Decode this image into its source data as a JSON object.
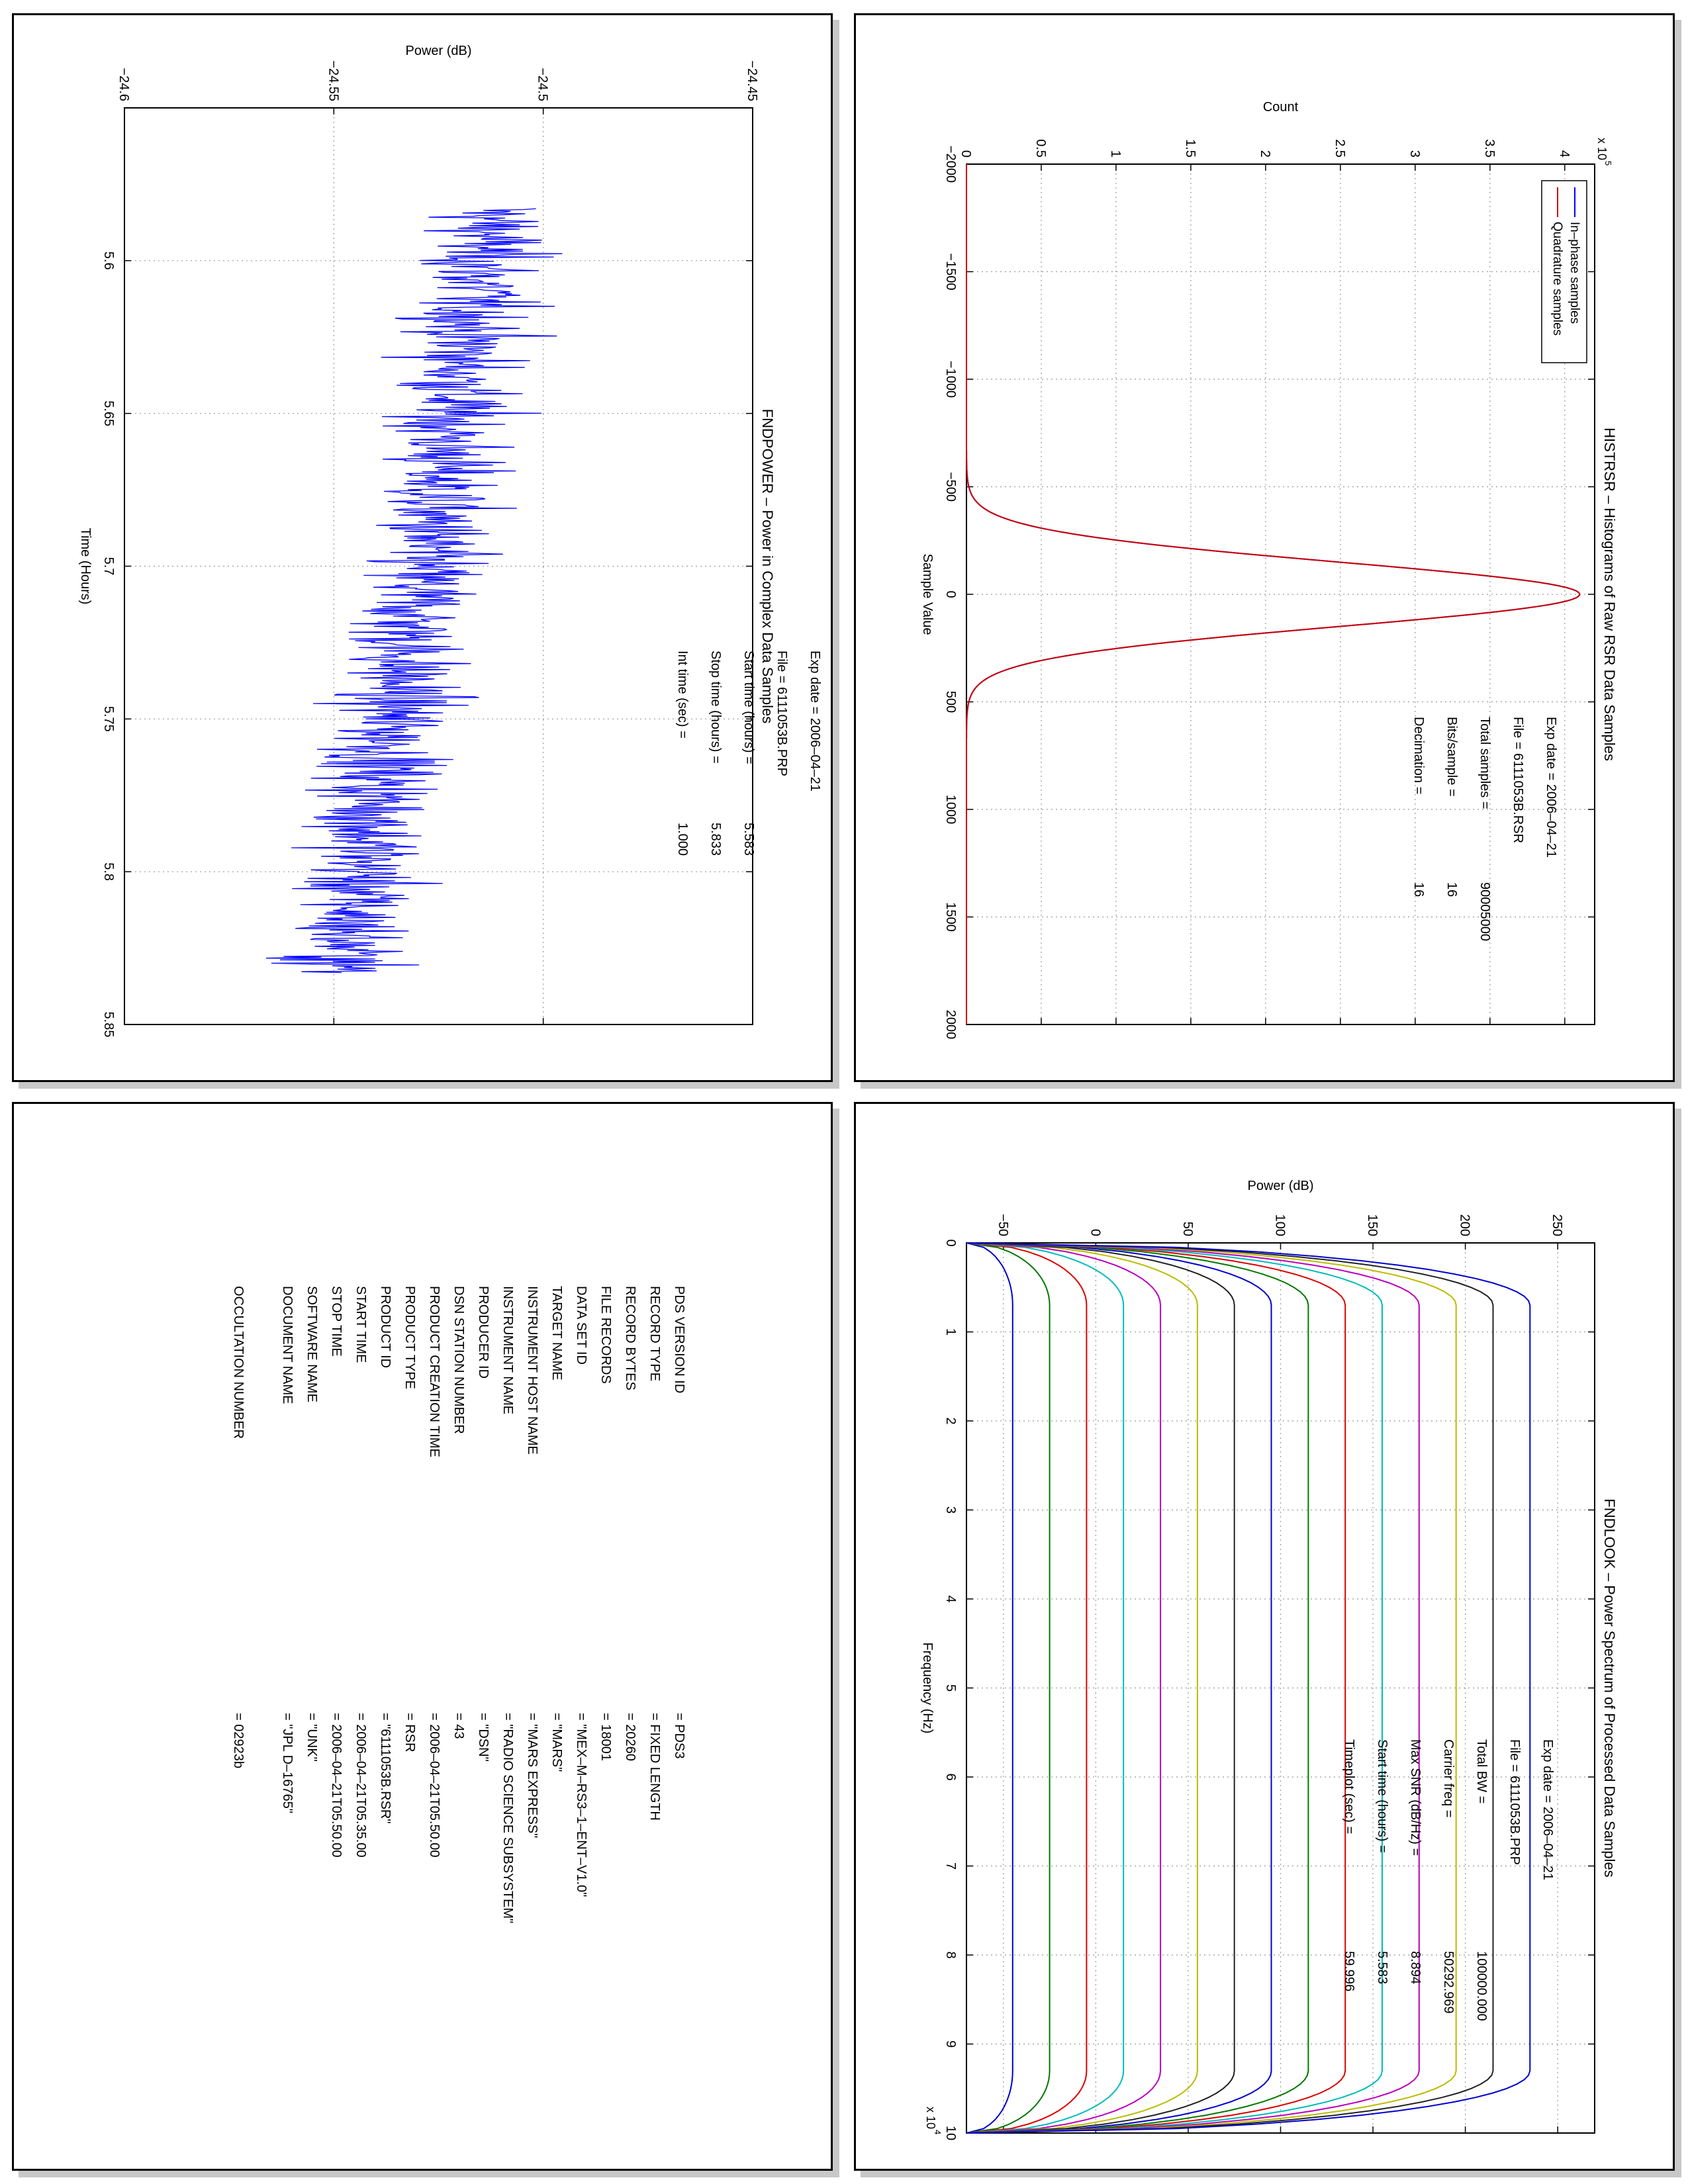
{
  "chart_data": [
    {
      "type": "line",
      "title": "HISTRSR – Histograms of Raw RSR Data Samples",
      "xlabel": "Sample Value",
      "ylabel": "Count",
      "y_exponent": "x 10",
      "y_exponent_power": "5",
      "xlim": [
        -2000,
        2000
      ],
      "ylim": [
        0,
        4.2
      ],
      "xticks": [
        "−2000",
        "−1500",
        "−1000",
        "−500",
        "0",
        "500",
        "1000",
        "1500",
        "2000"
      ],
      "yticks": [
        "0",
        "0.5",
        "1",
        "1.5",
        "2",
        "2.5",
        "3",
        "3.5",
        "4"
      ],
      "grid": true,
      "legend_location": "top-left",
      "series": [
        {
          "name": "In–phase samples",
          "color": "#0000ff",
          "peak": 4.1,
          "sigma": 150
        },
        {
          "name": "Quadrature samples",
          "color": "#cc0000",
          "peak": 4.1,
          "sigma": 150
        }
      ],
      "info": [
        {
          "label": "Exp date = 2006–04–21",
          "value": ""
        },
        {
          "label": "File = 6111053B.RSR",
          "value": ""
        },
        {
          "label": "Total samples =",
          "value": "90005000"
        },
        {
          "label": "Bits/sample   =",
          "value": "16"
        },
        {
          "label": "Decimation    =",
          "value": "16"
        }
      ]
    },
    {
      "type": "line",
      "title": "FNDPOWER – Power in Complex Data Samples",
      "xlabel": "Time (Hours)",
      "ylabel": "Power (dB)",
      "xlim": [
        5.55,
        5.85
      ],
      "ylim": [
        -24.6,
        -24.45
      ],
      "xticks": [
        "5.6",
        "5.65",
        "5.7",
        "5.75",
        "5.8",
        "5.85"
      ],
      "yticks": [
        "−24.6",
        "−24.55",
        "−24.5",
        "−24.45"
      ],
      "grid": true,
      "series": [
        {
          "name": "",
          "color": "#0000ff",
          "x_range": [
            5.583,
            5.833
          ],
          "mean": [
            -24.512,
            -24.548
          ],
          "noise": 0.014
        }
      ],
      "info": [
        {
          "label": "Exp date = 2006–04–21",
          "value": ""
        },
        {
          "label": "File = 6111053B.PRP",
          "value": ""
        },
        {
          "label": "Start time (hours) =",
          "value": "5.583"
        },
        {
          "label": "Stop time (hours) =",
          "value": "5.833"
        },
        {
          "label": "Int time (sec) =",
          "value": "1.000"
        }
      ]
    },
    {
      "type": "line",
      "title": "FNDLOOK – Power Spectrum of Processed Data Samples",
      "xlabel": "Frequency (Hz)",
      "ylabel": "Power (dB)",
      "x_exponent": "x 10",
      "x_exponent_power": "4",
      "xlim": [
        0,
        10
      ],
      "ylim": [
        -70,
        270
      ],
      "xticks": [
        "0",
        "1",
        "2",
        "3",
        "4",
        "5",
        "6",
        "7",
        "8",
        "9",
        "10"
      ],
      "yticks": [
        "−50",
        "0",
        "50",
        "100",
        "150",
        "200",
        "250"
      ],
      "grid": true,
      "series": [
        {
          "name": "",
          "color": "#0000cc",
          "level": -45
        },
        {
          "name": "",
          "color": "#007700",
          "level": -25
        },
        {
          "name": "",
          "color": "#dd0000",
          "level": -5
        },
        {
          "name": "",
          "color": "#00bbbb",
          "level": 15
        },
        {
          "name": "",
          "color": "#bb00bb",
          "level": 35
        },
        {
          "name": "",
          "color": "#bbbb00",
          "level": 55
        },
        {
          "name": "",
          "color": "#222222",
          "level": 75
        },
        {
          "name": "",
          "color": "#0000cc",
          "level": 95
        },
        {
          "name": "",
          "color": "#007700",
          "level": 115
        },
        {
          "name": "",
          "color": "#dd0000",
          "level": 135
        },
        {
          "name": "",
          "color": "#00bbbb",
          "level": 155
        },
        {
          "name": "",
          "color": "#bb00bb",
          "level": 175
        },
        {
          "name": "",
          "color": "#bbbb00",
          "level": 195
        },
        {
          "name": "",
          "color": "#222222",
          "level": 215
        },
        {
          "name": "",
          "color": "#0000cc",
          "level": 235
        }
      ],
      "info": [
        {
          "label": "Exp date = 2006–04–21",
          "value": ""
        },
        {
          "label": "File = 6111053B.PRP",
          "value": ""
        },
        {
          "label": "Total BW =",
          "value": "100000.000"
        },
        {
          "label": "Carrier freq =",
          "value": "50292.969"
        },
        {
          "label": "Max SNR (dB/Hz) =",
          "value": "8.894"
        },
        {
          "label": "Start time (hours) =",
          "value": "5.583"
        },
        {
          "label": "Timeplot (sec) =",
          "value": "59.996"
        }
      ]
    }
  ],
  "pds": [
    {
      "label": "PDS VERSION ID",
      "value": "= PDS3"
    },
    {
      "label": "RECORD TYPE",
      "value": "= FIXED LENGTH"
    },
    {
      "label": "RECORD BYTES",
      "value": "= 20260"
    },
    {
      "label": "FILE RECORDS",
      "value": "= 18001"
    },
    {
      "label": "DATA SET ID",
      "value": "= \"MEX–M–RS3–1–ENT–V1.0\""
    },
    {
      "label": "TARGET NAME",
      "value": "= \"MARS\""
    },
    {
      "label": "INSTRUMENT HOST NAME",
      "value": "= \"MARS EXPRESS\""
    },
    {
      "label": "INSTRUMENT NAME",
      "value": "= \"RADIO SCIENCE SUBSYSTEM\""
    },
    {
      "label": "PRODUCER ID",
      "value": "= \"DSN\""
    },
    {
      "label": "DSN STATION NUMBER",
      "value": "= 43"
    },
    {
      "label": "PRODUCT CREATION TIME",
      "value": "= 2006–04–21T05.50.00"
    },
    {
      "label": "PRODUCT TYPE",
      "value": "= RSR"
    },
    {
      "label": "PRODUCT ID",
      "value": "= \"6111053B.RSR\""
    },
    {
      "label": "START TIME",
      "value": "= 2006–04–21T05.35.00"
    },
    {
      "label": "STOP TIME",
      "value": "= 2006–04–21T05.50.00"
    },
    {
      "label": "SOFTWARE NAME",
      "value": "= \"UNK\""
    },
    {
      "label": "DOCUMENT NAME",
      "value": "= \"JPL D–16765\""
    },
    {
      "label": "",
      "value": ""
    },
    {
      "label": "OCCULTATION NUMBER",
      "value": "= 02923b"
    }
  ]
}
